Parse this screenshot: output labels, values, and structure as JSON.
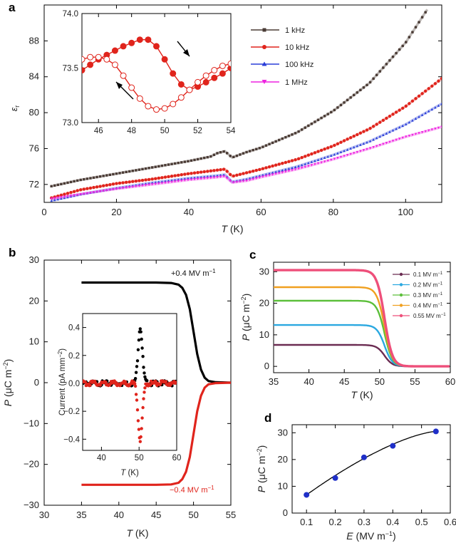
{
  "chart_data": [
    {
      "panel": "a",
      "type": "scatter",
      "xlabel_symbol": "T",
      "xlabel_unit": " (K)",
      "ylabel": "ε",
      "ylabel_sub": "r",
      "xlim": [
        0,
        110
      ],
      "ylim": [
        70,
        92
      ],
      "xticks": [
        "0",
        "20",
        "40",
        "60",
        "80",
        "100"
      ],
      "yticks": [
        "72",
        "76",
        "80",
        "84",
        "88"
      ],
      "xtick_values": [
        0,
        20,
        40,
        60,
        80,
        100
      ],
      "ytick_values": [
        72,
        76,
        80,
        84,
        88
      ],
      "series": [
        {
          "name": "1 kHz",
          "color": "#4a3b35",
          "marker": "square",
          "x": [
            2,
            10,
            20,
            30,
            40,
            46,
            48,
            50,
            52,
            56,
            60,
            70,
            80,
            90,
            100,
            106
          ],
          "y": [
            71.8,
            72.5,
            73.2,
            73.9,
            74.6,
            75.1,
            75.5,
            75.7,
            75.0,
            75.6,
            76.1,
            77.8,
            80.2,
            83.3,
            87.8,
            91.5
          ]
        },
        {
          "name": "10 kHz",
          "color": "#e0241c",
          "marker": "circle",
          "x": [
            2,
            10,
            20,
            30,
            40,
            48,
            50,
            52,
            56,
            60,
            70,
            80,
            90,
            100,
            110
          ],
          "y": [
            70.5,
            71.4,
            72.1,
            72.6,
            73.2,
            73.6,
            73.7,
            72.9,
            73.3,
            73.7,
            74.8,
            76.3,
            78.2,
            80.7,
            83.8
          ]
        },
        {
          "name": "100 kHz",
          "color": "#2a3ed8",
          "marker": "triangle",
          "x": [
            2,
            10,
            20,
            30,
            40,
            48,
            50,
            52,
            56,
            60,
            70,
            80,
            90,
            100,
            110
          ],
          "y": [
            70.2,
            70.9,
            71.6,
            72.2,
            72.7,
            73.0,
            73.1,
            72.3,
            72.6,
            73.0,
            74.0,
            75.3,
            76.8,
            78.7,
            81.0
          ]
        },
        {
          "name": "1 MHz",
          "color": "#ee22e0",
          "marker": "triangle-down",
          "x": [
            2,
            10,
            20,
            30,
            40,
            48,
            50,
            52,
            56,
            60,
            70,
            80,
            90,
            100,
            110
          ],
          "y": [
            70.4,
            70.9,
            71.5,
            72.0,
            72.5,
            72.8,
            72.9,
            72.2,
            72.4,
            72.8,
            73.7,
            74.8,
            76.0,
            77.3,
            78.4
          ]
        }
      ],
      "inset": {
        "type": "line",
        "xlim": [
          45,
          54
        ],
        "ylim": [
          73.0,
          74.0
        ],
        "xticks": [
          "46",
          "48",
          "50",
          "52",
          "54"
        ],
        "yticks": [
          "73.0",
          "73.5",
          "74.0"
        ],
        "xtick_values": [
          46,
          48,
          50,
          52,
          54
        ],
        "ytick_values": [
          73.0,
          73.5,
          74.0
        ],
        "color": "#e0241c",
        "heating": {
          "name": "heating (filled)",
          "x": [
            45,
            45.5,
            46,
            46.5,
            47,
            47.5,
            48,
            48.5,
            49,
            49.5,
            50,
            50.5,
            51,
            51.5,
            52,
            52.5,
            53,
            53.5,
            54
          ],
          "y": [
            73.48,
            73.53,
            73.58,
            73.62,
            73.66,
            73.7,
            73.73,
            73.76,
            73.76,
            73.7,
            73.58,
            73.45,
            73.35,
            73.3,
            73.33,
            73.37,
            73.41,
            73.45,
            73.5
          ]
        },
        "cooling": {
          "name": "cooling (open)",
          "x": [
            45,
            45.5,
            46,
            46.5,
            47,
            47.5,
            48,
            48.5,
            49,
            49.5,
            50,
            50.5,
            51,
            51.5,
            52,
            52.5,
            53,
            53.5,
            54
          ],
          "y": [
            73.58,
            73.6,
            73.6,
            73.58,
            73.53,
            73.43,
            73.32,
            73.22,
            73.15,
            73.12,
            73.13,
            73.17,
            73.23,
            73.3,
            73.37,
            73.43,
            73.48,
            73.52,
            73.54
          ]
        }
      }
    },
    {
      "panel": "b",
      "type": "line",
      "xlabel_symbol": "T",
      "xlabel_unit": " (K)",
      "ylabel_symbol": "P",
      "ylabel_unit": " (μC m",
      "ylabel_exp": "−2",
      "ylabel_end": ")",
      "xlim": [
        30,
        55
      ],
      "ylim": [
        -30,
        30
      ],
      "xticks": [
        "30",
        "35",
        "40",
        "45",
        "50",
        "55"
      ],
      "yticks": [
        "−30",
        "−20",
        "−10",
        "0",
        "10",
        "20",
        "30"
      ],
      "xtick_values": [
        30,
        35,
        40,
        45,
        50,
        55
      ],
      "ytick_values": [
        -30,
        -20,
        -10,
        0,
        10,
        20,
        30
      ],
      "series": [
        {
          "name": "+0.4 MV m",
          "name_exp": "−1",
          "color": "#000000",
          "x": [
            35,
            40,
            45,
            47,
            48,
            48.5,
            49,
            49.5,
            50,
            50.5,
            51,
            51.5,
            52,
            53,
            55
          ],
          "y": [
            24.5,
            24.5,
            24.5,
            24.4,
            24.0,
            23.2,
            21.5,
            18.0,
            12.5,
            7.0,
            3.2,
            1.2,
            0.4,
            0.1,
            0.0
          ]
        },
        {
          "name": "−0.4 MV m",
          "name_exp": "−1",
          "color": "#e0241c",
          "x": [
            35,
            40,
            45,
            47,
            48,
            48.5,
            49,
            49.5,
            50,
            50.5,
            51,
            51.5,
            52,
            53,
            55
          ],
          "y": [
            -25.0,
            -25.0,
            -25.0,
            -24.9,
            -24.5,
            -23.6,
            -21.8,
            -18.2,
            -12.6,
            -7.0,
            -3.2,
            -1.2,
            -0.4,
            -0.1,
            0.0
          ]
        }
      ],
      "inset": {
        "type": "scatter",
        "xlabel_symbol": "T",
        "xlabel_unit": " (K)",
        "ylabel": "Current (pA mm",
        "ylabel_exp": "−2",
        "ylabel_end": ")",
        "xlim": [
          35,
          60
        ],
        "ylim": [
          -0.48,
          0.5
        ],
        "xticks": [
          "40",
          "50",
          "60"
        ],
        "yticks": [
          "−0.4",
          "−0.2",
          "0.0",
          "0.2",
          "0.4"
        ],
        "xtick_values": [
          40,
          50,
          60
        ],
        "ytick_values": [
          -0.4,
          -0.2,
          0.0,
          0.2,
          0.4
        ],
        "peak_center": 50.3,
        "peak_width": 0.8,
        "series": [
          {
            "name": "+0.4 MV m-1",
            "color": "#000000",
            "peak": 0.4
          },
          {
            "name": "−0.4 MV m-1",
            "color": "#e0241c",
            "peak": -0.4
          }
        ]
      }
    },
    {
      "panel": "c",
      "type": "line",
      "xlabel_symbol": "T",
      "xlabel_unit": " (K)",
      "ylabel_symbol": "P",
      "ylabel_unit": " (μC m",
      "ylabel_exp": "−2",
      "ylabel_end": ")",
      "xlim": [
        35,
        60
      ],
      "ylim": [
        -2,
        33
      ],
      "xticks": [
        "35",
        "40",
        "45",
        "50",
        "55",
        "60"
      ],
      "yticks": [
        "0",
        "10",
        "20",
        "30"
      ],
      "xtick_values": [
        35,
        40,
        45,
        50,
        55,
        60
      ],
      "ytick_values": [
        0,
        10,
        20,
        30
      ],
      "transition_T": 50.7,
      "transition_width": 0.55,
      "series": [
        {
          "name": "0.1 MV m",
          "name_exp": "−1",
          "color": "#6b2c52",
          "plateau": 6.8
        },
        {
          "name": "0.2 MV m",
          "name_exp": "−1",
          "color": "#2aa8e0",
          "plateau": 13.1
        },
        {
          "name": "0.3 MV m",
          "name_exp": "−1",
          "color": "#5cbf3a",
          "plateau": 20.8
        },
        {
          "name": "0.4 MV m",
          "name_exp": "−1",
          "color": "#f0a020",
          "plateau": 25.1
        },
        {
          "name": "0.55 MV m",
          "name_exp": "−1",
          "color": "#ee4f7a",
          "plateau": 30.5
        }
      ]
    },
    {
      "panel": "d",
      "type": "scatter",
      "xlabel_symbol": "E",
      "xlabel_unit": " (MV m",
      "xlabel_exp": "−1",
      "xlabel_end": ")",
      "ylabel_symbol": "P",
      "ylabel_unit": " (μC m",
      "ylabel_exp": "−2",
      "ylabel_end": ")",
      "xlim": [
        0.05,
        0.6
      ],
      "ylim": [
        0,
        33
      ],
      "xticks": [
        "0.1",
        "0.2",
        "0.3",
        "0.4",
        "0.5",
        "0.6"
      ],
      "yticks": [
        "0",
        "10",
        "20",
        "30"
      ],
      "xtick_values": [
        0.1,
        0.2,
        0.3,
        0.4,
        0.5,
        0.6
      ],
      "ytick_values": [
        0,
        10,
        20,
        30
      ],
      "points_x": [
        0.1,
        0.2,
        0.3,
        0.4,
        0.55
      ],
      "points_y": [
        6.8,
        13.1,
        20.8,
        25.1,
        30.5
      ],
      "point_color": "#1f2fc8",
      "fit_color": "#000000"
    }
  ],
  "figure": {
    "panel_labels": [
      "a",
      "b",
      "c",
      "d"
    ]
  }
}
